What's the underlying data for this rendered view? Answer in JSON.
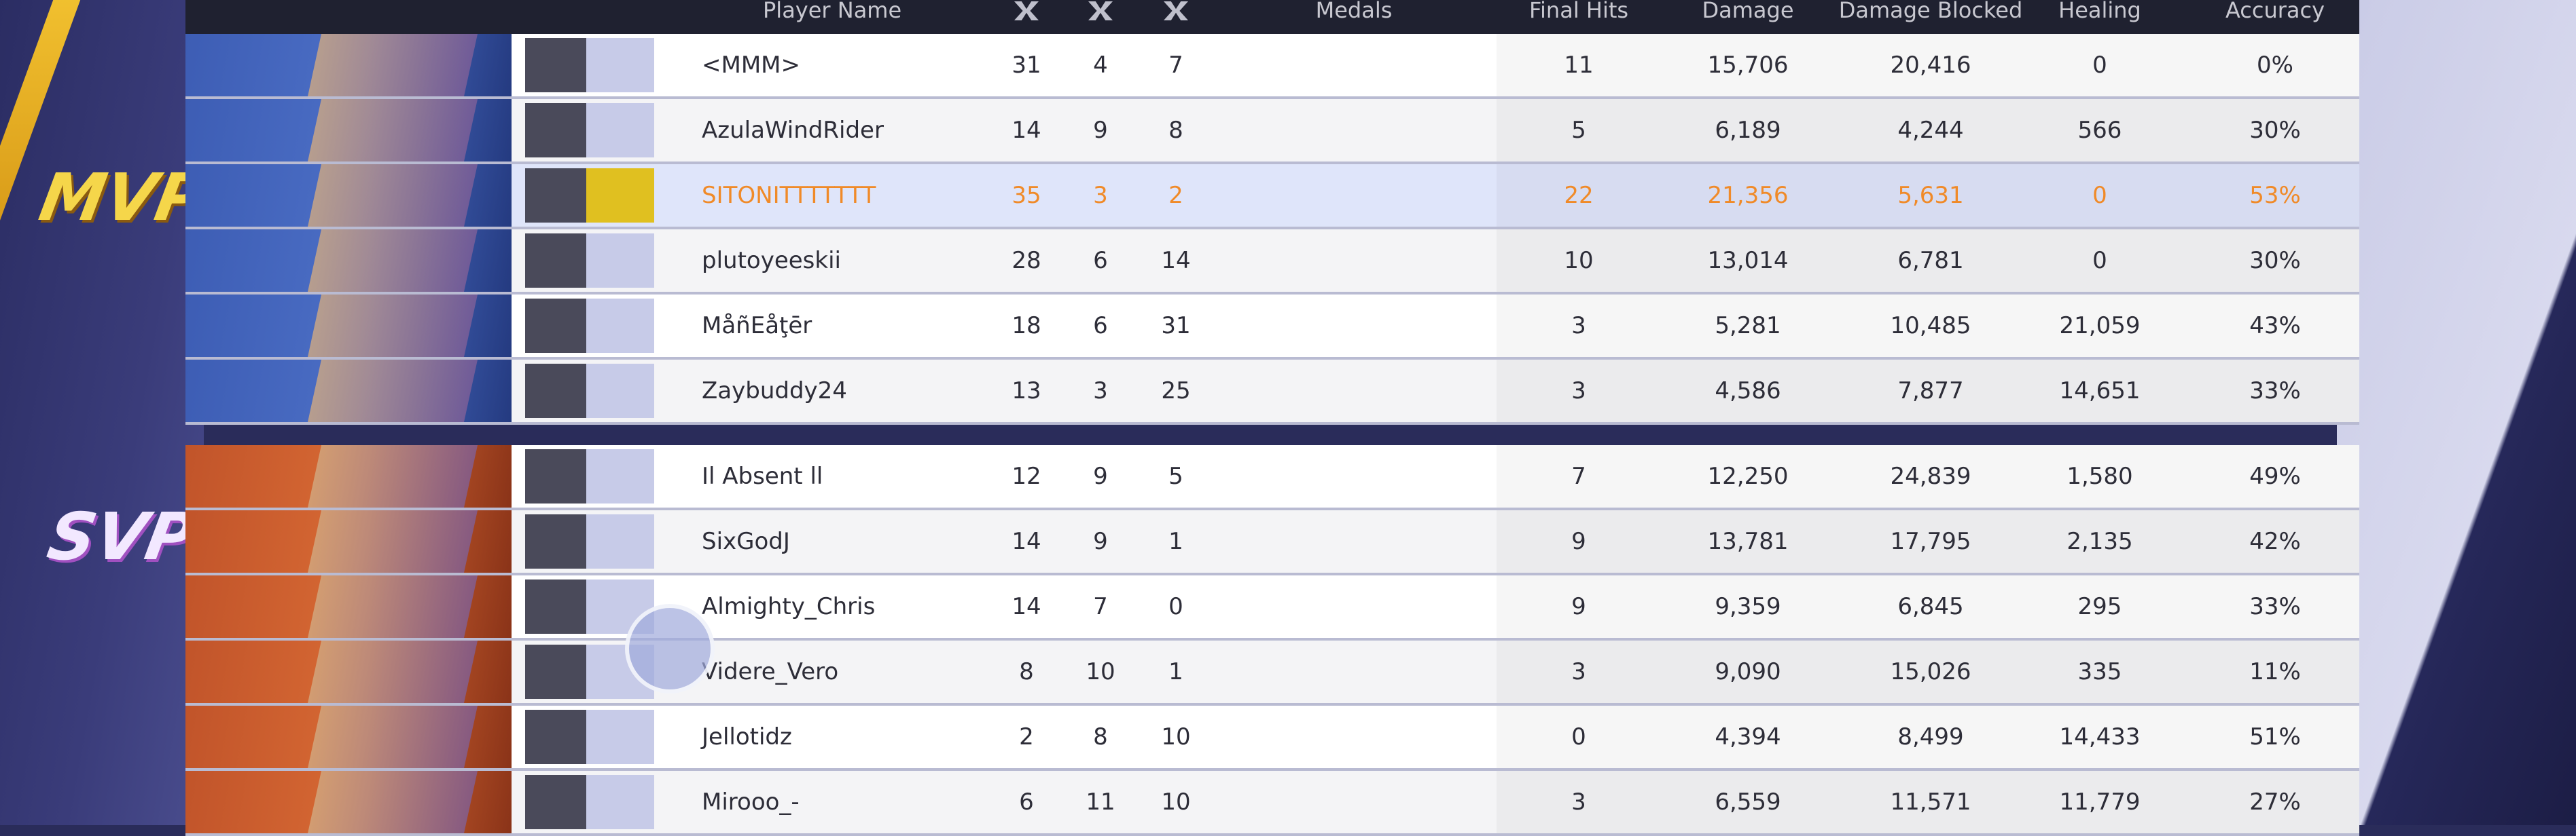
{
  "labels": {
    "team1": "MVP",
    "team2": "SVP"
  },
  "header": {
    "player_name": "Player Name",
    "medals": "Medals",
    "final_hits": "Final Hits",
    "damage": "Damage",
    "damage_blocked": "Damage Blocked",
    "healing": "Healing",
    "accuracy": "Accuracy"
  },
  "table": {
    "rows": [
      {
        "name": "<MMM>",
        "kills": 31,
        "deaths": 4,
        "assists": 7,
        "final_hits": 11,
        "damage": "15,706",
        "damage_blocked": "20,416",
        "healing": 0,
        "accuracy": "0%"
      },
      {
        "name": "AzulaWindRider",
        "kills": 14,
        "deaths": 9,
        "assists": 8,
        "final_hits": 5,
        "damage": "6,189",
        "damage_blocked": "4,244",
        "healing": 566,
        "accuracy": "30%"
      },
      {
        "name": "SITONITTTTTTT",
        "kills": 35,
        "deaths": 3,
        "assists": 2,
        "final_hits": 22,
        "damage": "21,356",
        "damage_blocked": "5,631",
        "healing": 0,
        "accuracy": "53%"
      },
      {
        "name": "plutoyeeskii",
        "kills": 28,
        "deaths": 6,
        "assists": 14,
        "final_hits": 10,
        "damage": "13,014",
        "damage_blocked": "6,781",
        "healing": 0,
        "accuracy": "30%"
      },
      {
        "name": "MåñEåţēr",
        "kills": 18,
        "deaths": 6,
        "assists": 31,
        "final_hits": 3,
        "damage": "5,281",
        "damage_blocked": "10,485",
        "healing": "21,059",
        "accuracy": "43%"
      },
      {
        "name": "Zaybuddy24",
        "kills": 13,
        "deaths": 3,
        "assists": 25,
        "final_hits": 3,
        "damage": "4,586",
        "damage_blocked": "7,877",
        "healing": "14,651",
        "accuracy": "33%"
      },
      {
        "name": "Il Absent ll",
        "kills": 12,
        "deaths": 9,
        "assists": 5,
        "final_hits": 7,
        "damage": "12,250",
        "damage_blocked": "24,839",
        "healing": "1,580",
        "accuracy": "49%"
      },
      {
        "name": "SixGodJ",
        "kills": 14,
        "deaths": 9,
        "assists": 1,
        "final_hits": 9,
        "damage": "13,781",
        "damage_blocked": "17,795",
        "healing": "2,135",
        "accuracy": "42%"
      },
      {
        "name": "Almighty_Chris",
        "kills": 14,
        "deaths": 7,
        "assists": 0,
        "final_hits": 9,
        "damage": "9,359",
        "damage_blocked": "6,845",
        "healing": 295,
        "accuracy": "33%"
      },
      {
        "name": "Videre_Vero",
        "kills": 8,
        "deaths": 10,
        "assists": 1,
        "final_hits": 3,
        "damage": "9,090",
        "damage_blocked": "15,026",
        "healing": 335,
        "accuracy": "11%"
      },
      {
        "name": "Jellotidz",
        "kills": 2,
        "deaths": 8,
        "assists": 10,
        "final_hits": 0,
        "damage": "4,394",
        "damage_blocked": "8,499",
        "healing": "14,433",
        "accuracy": "51%"
      },
      {
        "name": "Mirooo_-",
        "kills": 6,
        "deaths": 11,
        "assists": 10,
        "final_hits": 3,
        "damage": "6,559",
        "damage_blocked": "11,571",
        "healing": "11,779",
        "accuracy": "27%"
      }
    ]
  }
}
